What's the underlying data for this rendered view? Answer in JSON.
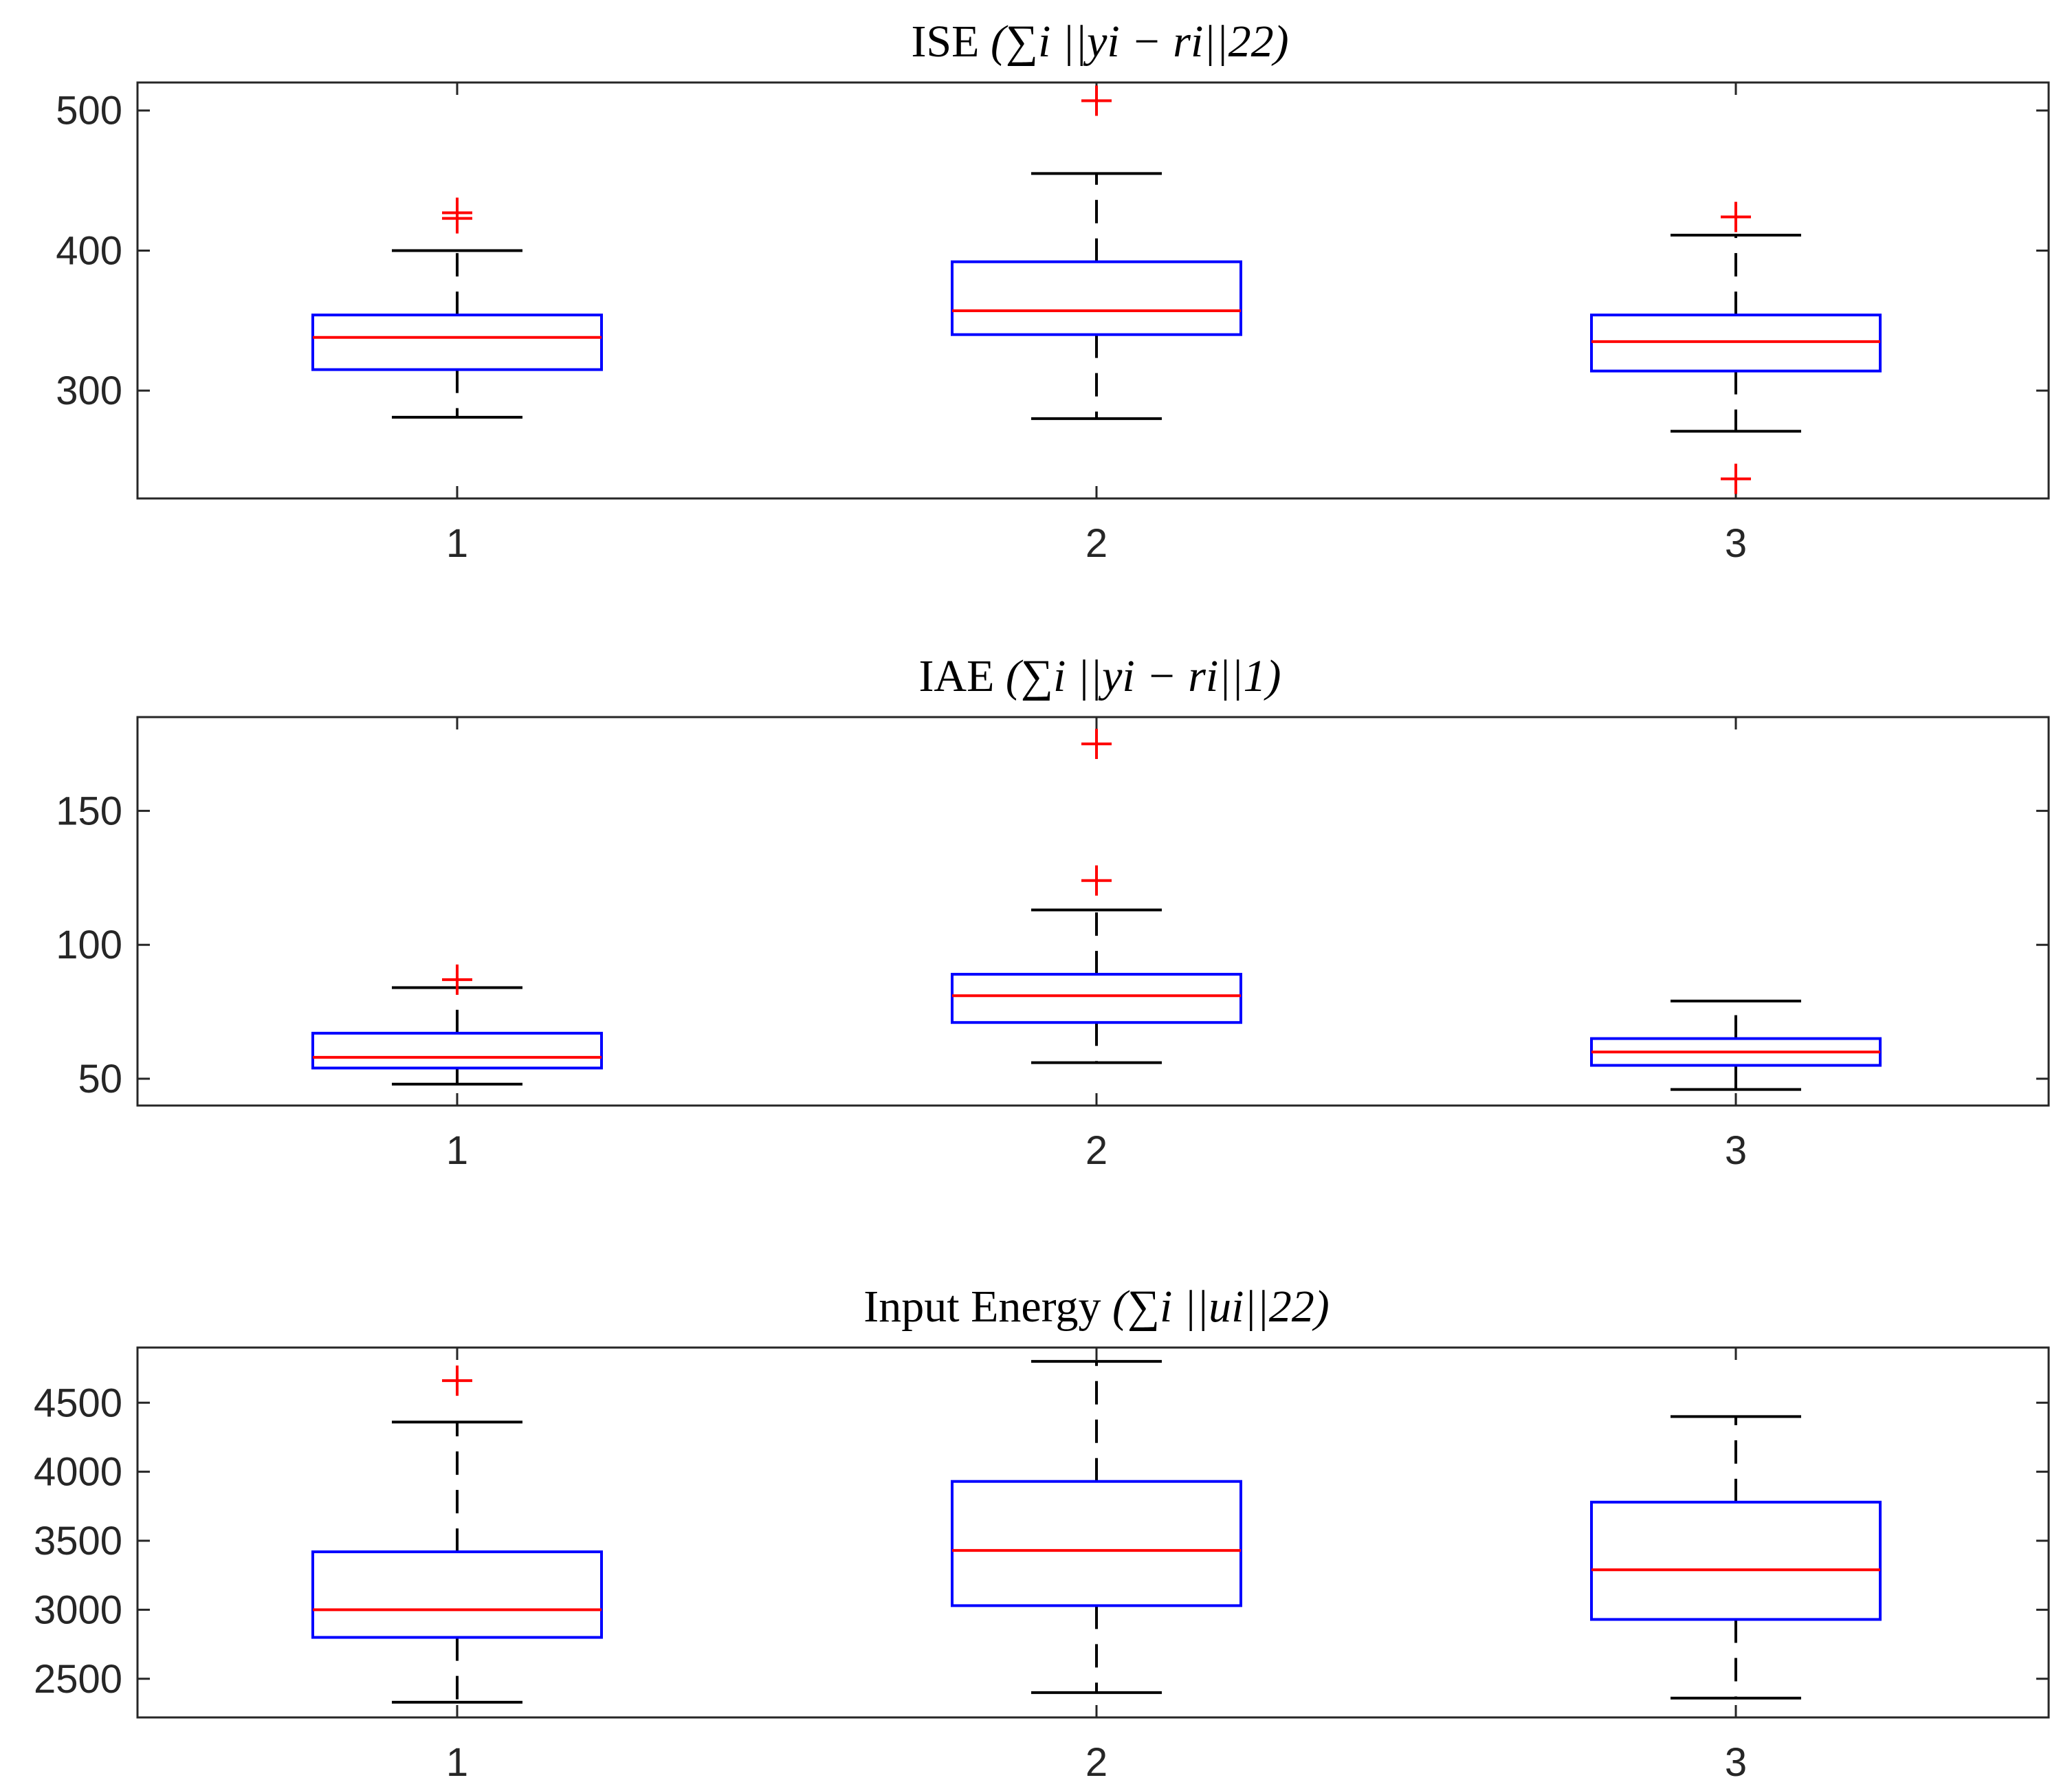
{
  "colors": {
    "box": "#0000ff",
    "median": "#ff0000",
    "whisker": "#000000",
    "outlier": "#ff0000",
    "axes": "#262626"
  },
  "chart_data": [
    {
      "type": "boxplot",
      "title": "ISE",
      "title_math": "(∑i ||yi − ri||22)",
      "categories": [
        "1",
        "2",
        "3"
      ],
      "ylim": [
        223,
        520
      ],
      "yticks": [
        300,
        400,
        500
      ],
      "ytick_labels": [
        "300",
        "400",
        "500"
      ],
      "boxes": [
        {
          "whisker_low": 281,
          "q1": 315,
          "median": 338,
          "q3": 354,
          "whisker_high": 400,
          "outliers": [
            423,
            427
          ]
        },
        {
          "whisker_low": 280,
          "q1": 340,
          "median": 357,
          "q3": 392,
          "whisker_high": 455,
          "outliers": [
            507
          ]
        },
        {
          "whisker_low": 271,
          "q1": 314,
          "median": 335,
          "q3": 354,
          "whisker_high": 411,
          "outliers": [
            424,
            237
          ]
        }
      ]
    },
    {
      "type": "boxplot",
      "title": "IAE",
      "title_math": "(∑i ||yi − ri||1)",
      "categories": [
        "1",
        "2",
        "3"
      ],
      "ylim": [
        40,
        185
      ],
      "yticks": [
        50,
        100,
        150
      ],
      "ytick_labels": [
        "50",
        "100",
        "150"
      ],
      "boxes": [
        {
          "whisker_low": 48,
          "q1": 54,
          "median": 58,
          "q3": 67,
          "whisker_high": 84,
          "outliers": [
            87
          ]
        },
        {
          "whisker_low": 56,
          "q1": 71,
          "median": 81,
          "q3": 89,
          "whisker_high": 113,
          "outliers": [
            124,
            175
          ]
        },
        {
          "whisker_low": 46,
          "q1": 55,
          "median": 60,
          "q3": 65,
          "whisker_high": 79,
          "outliers": []
        }
      ]
    },
    {
      "type": "boxplot",
      "title": "Input Energy",
      "title_math": "(∑i ||ui||22)",
      "categories": [
        "1",
        "2",
        "3"
      ],
      "ylim": [
        2220,
        4900
      ],
      "yticks": [
        2500,
        3000,
        3500,
        4000,
        4500
      ],
      "ytick_labels": [
        "2500",
        "3000",
        "3500",
        "4000",
        "4500"
      ],
      "boxes": [
        {
          "whisker_low": 2330,
          "q1": 2800,
          "median": 3000,
          "q3": 3420,
          "whisker_high": 4360,
          "outliers": [
            4660
          ]
        },
        {
          "whisker_low": 2400,
          "q1": 3030,
          "median": 3430,
          "q3": 3930,
          "whisker_high": 4800,
          "outliers": []
        },
        {
          "whisker_low": 2360,
          "q1": 2930,
          "median": 3290,
          "q3": 3780,
          "whisker_high": 4400,
          "outliers": []
        }
      ]
    }
  ]
}
